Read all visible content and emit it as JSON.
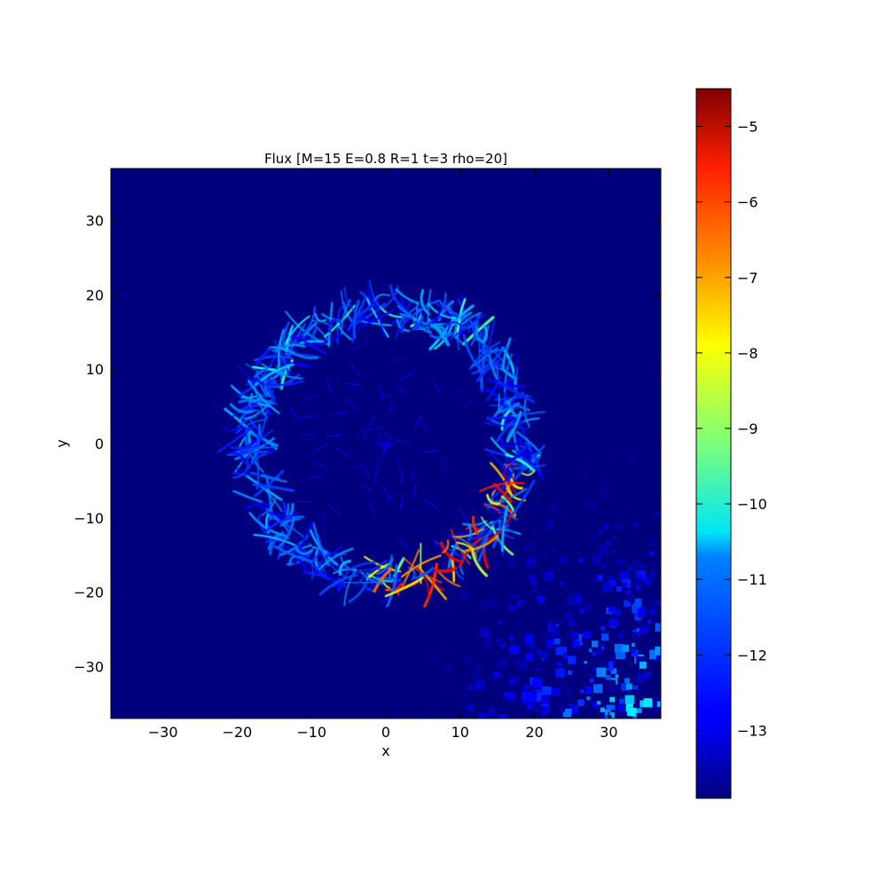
{
  "chart_data": {
    "type": "heatmap",
    "title": "Flux [M=15 E=0.8 R=1 t=3 rho=20]",
    "xlabel": "x",
    "ylabel": "y",
    "xlim": [
      -37,
      37
    ],
    "ylim": [
      -37,
      37
    ],
    "x_ticks": [
      -30,
      -20,
      -10,
      0,
      10,
      20,
      30
    ],
    "y_ticks": [
      -30,
      -20,
      -10,
      0,
      10,
      20,
      30
    ],
    "x_tick_labels": [
      "−30",
      "−20",
      "−10",
      "0",
      "10",
      "20",
      "30"
    ],
    "y_tick_labels": [
      "−30",
      "−20",
      "−10",
      "0",
      "10",
      "20",
      "30"
    ],
    "colormap": "jet",
    "background_color": "#00007f",
    "colorbar": {
      "range": [
        -13.9,
        -4.5
      ],
      "ticks": [
        -13,
        -12,
        -11,
        -10,
        -9,
        -8,
        -7,
        -6,
        -5
      ],
      "tick_labels": [
        "−13",
        "−12",
        "−11",
        "−10",
        "−9",
        "−8",
        "−7",
        "−6",
        "−5"
      ]
    },
    "features": {
      "shell": {
        "center": [
          0,
          0
        ],
        "radius": 19,
        "level_min": -13.0,
        "level_max": -9.5
      },
      "hot_arc": {
        "angle_range_deg": [
          -95,
          -10
        ],
        "level_max": -5.0
      },
      "lower_right_noise": {
        "region": "lower-right",
        "level_max": -10.5
      }
    },
    "grid": false
  }
}
